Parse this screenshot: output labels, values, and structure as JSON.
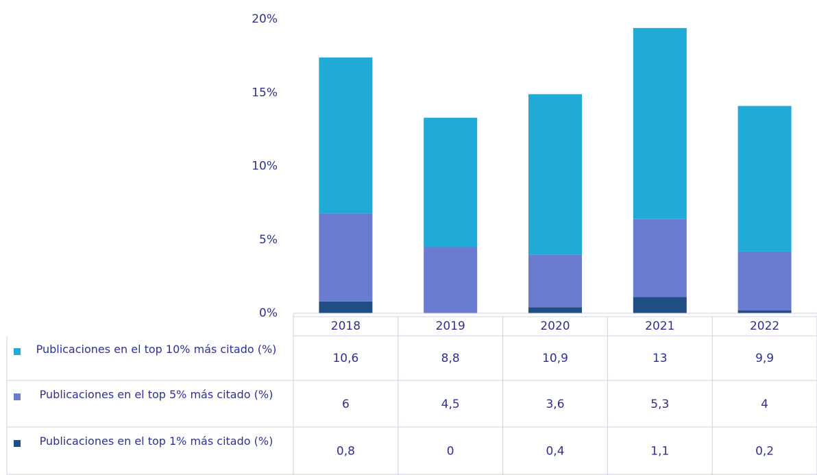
{
  "chart_data": {
    "type": "stacked_bar",
    "categories": [
      "2018",
      "2019",
      "2020",
      "2021",
      "2022"
    ],
    "series": [
      {
        "name": "Publicaciones en el top 10% más citado (%)",
        "color": "#21a9d8",
        "values": [
          10.6,
          8.8,
          10.9,
          13,
          9.9
        ],
        "value_labels": [
          "10,6",
          "8,8",
          "10,9",
          "13",
          "9,9"
        ]
      },
      {
        "name": "Publicaciones en el top 5% más citado (%)",
        "color": "#6a7bd1",
        "values": [
          6,
          4.5,
          3.6,
          5.3,
          4
        ],
        "value_labels": [
          "6",
          "4,5",
          "3,6",
          "5,3",
          "4"
        ]
      },
      {
        "name": "Publicaciones en el top 1% más citado (%)",
        "color": "#1f4e84",
        "values": [
          0.8,
          0,
          0.4,
          1.1,
          0.2
        ],
        "value_labels": [
          "0,8",
          "0",
          "0,4",
          "1,1",
          "0,2"
        ]
      }
    ],
    "ylim": [
      0,
      20
    ],
    "yticks": [
      {
        "value": 0,
        "label": "0%"
      },
      {
        "value": 5,
        "label": "5%"
      },
      {
        "value": 10,
        "label": "10%"
      },
      {
        "value": 15,
        "label": "15%"
      },
      {
        "value": 20,
        "label": "20%"
      }
    ],
    "grid": false
  }
}
